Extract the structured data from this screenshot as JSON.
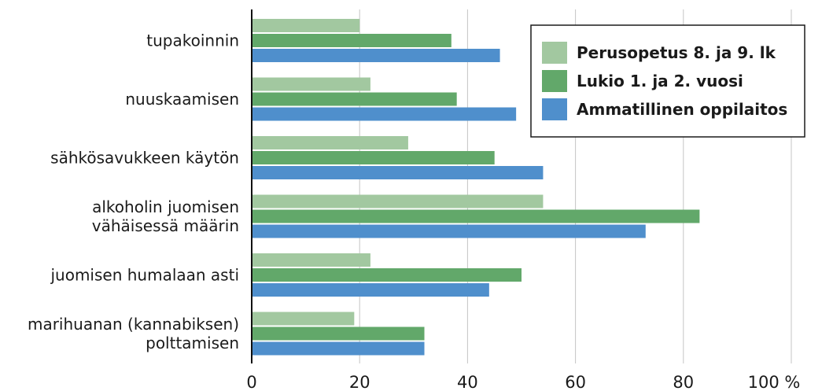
{
  "chart_data": {
    "type": "bar",
    "orientation": "horizontal",
    "categories": [
      [
        "tupakoinnin"
      ],
      [
        "nuuskaamisen"
      ],
      [
        "sähkösavukkeen käytön"
      ],
      [
        "alkoholin juomisen",
        "vähäisessä määrin"
      ],
      [
        "juomisen humalaan asti"
      ],
      [
        "marihuanan (kannabiksen)",
        "polttamisen"
      ]
    ],
    "series": [
      {
        "name": "Perusopetus 8. ja 9. lk",
        "color": "#a2c8a0",
        "values": [
          20,
          22,
          29,
          54,
          22,
          19
        ]
      },
      {
        "name": "Lukio 1. ja 2. vuosi",
        "color": "#62a86a",
        "values": [
          37,
          38,
          45,
          83,
          50,
          32
        ]
      },
      {
        "name": "Ammatillinen oppilaitos",
        "color": "#4f8fcc",
        "values": [
          46,
          49,
          54,
          73,
          44,
          32
        ]
      }
    ],
    "x_ticks": [
      "0",
      "20",
      "40",
      "60",
      "80",
      "100 %"
    ],
    "xlim": [
      0,
      100
    ],
    "grid": true,
    "legend": "top-right"
  }
}
